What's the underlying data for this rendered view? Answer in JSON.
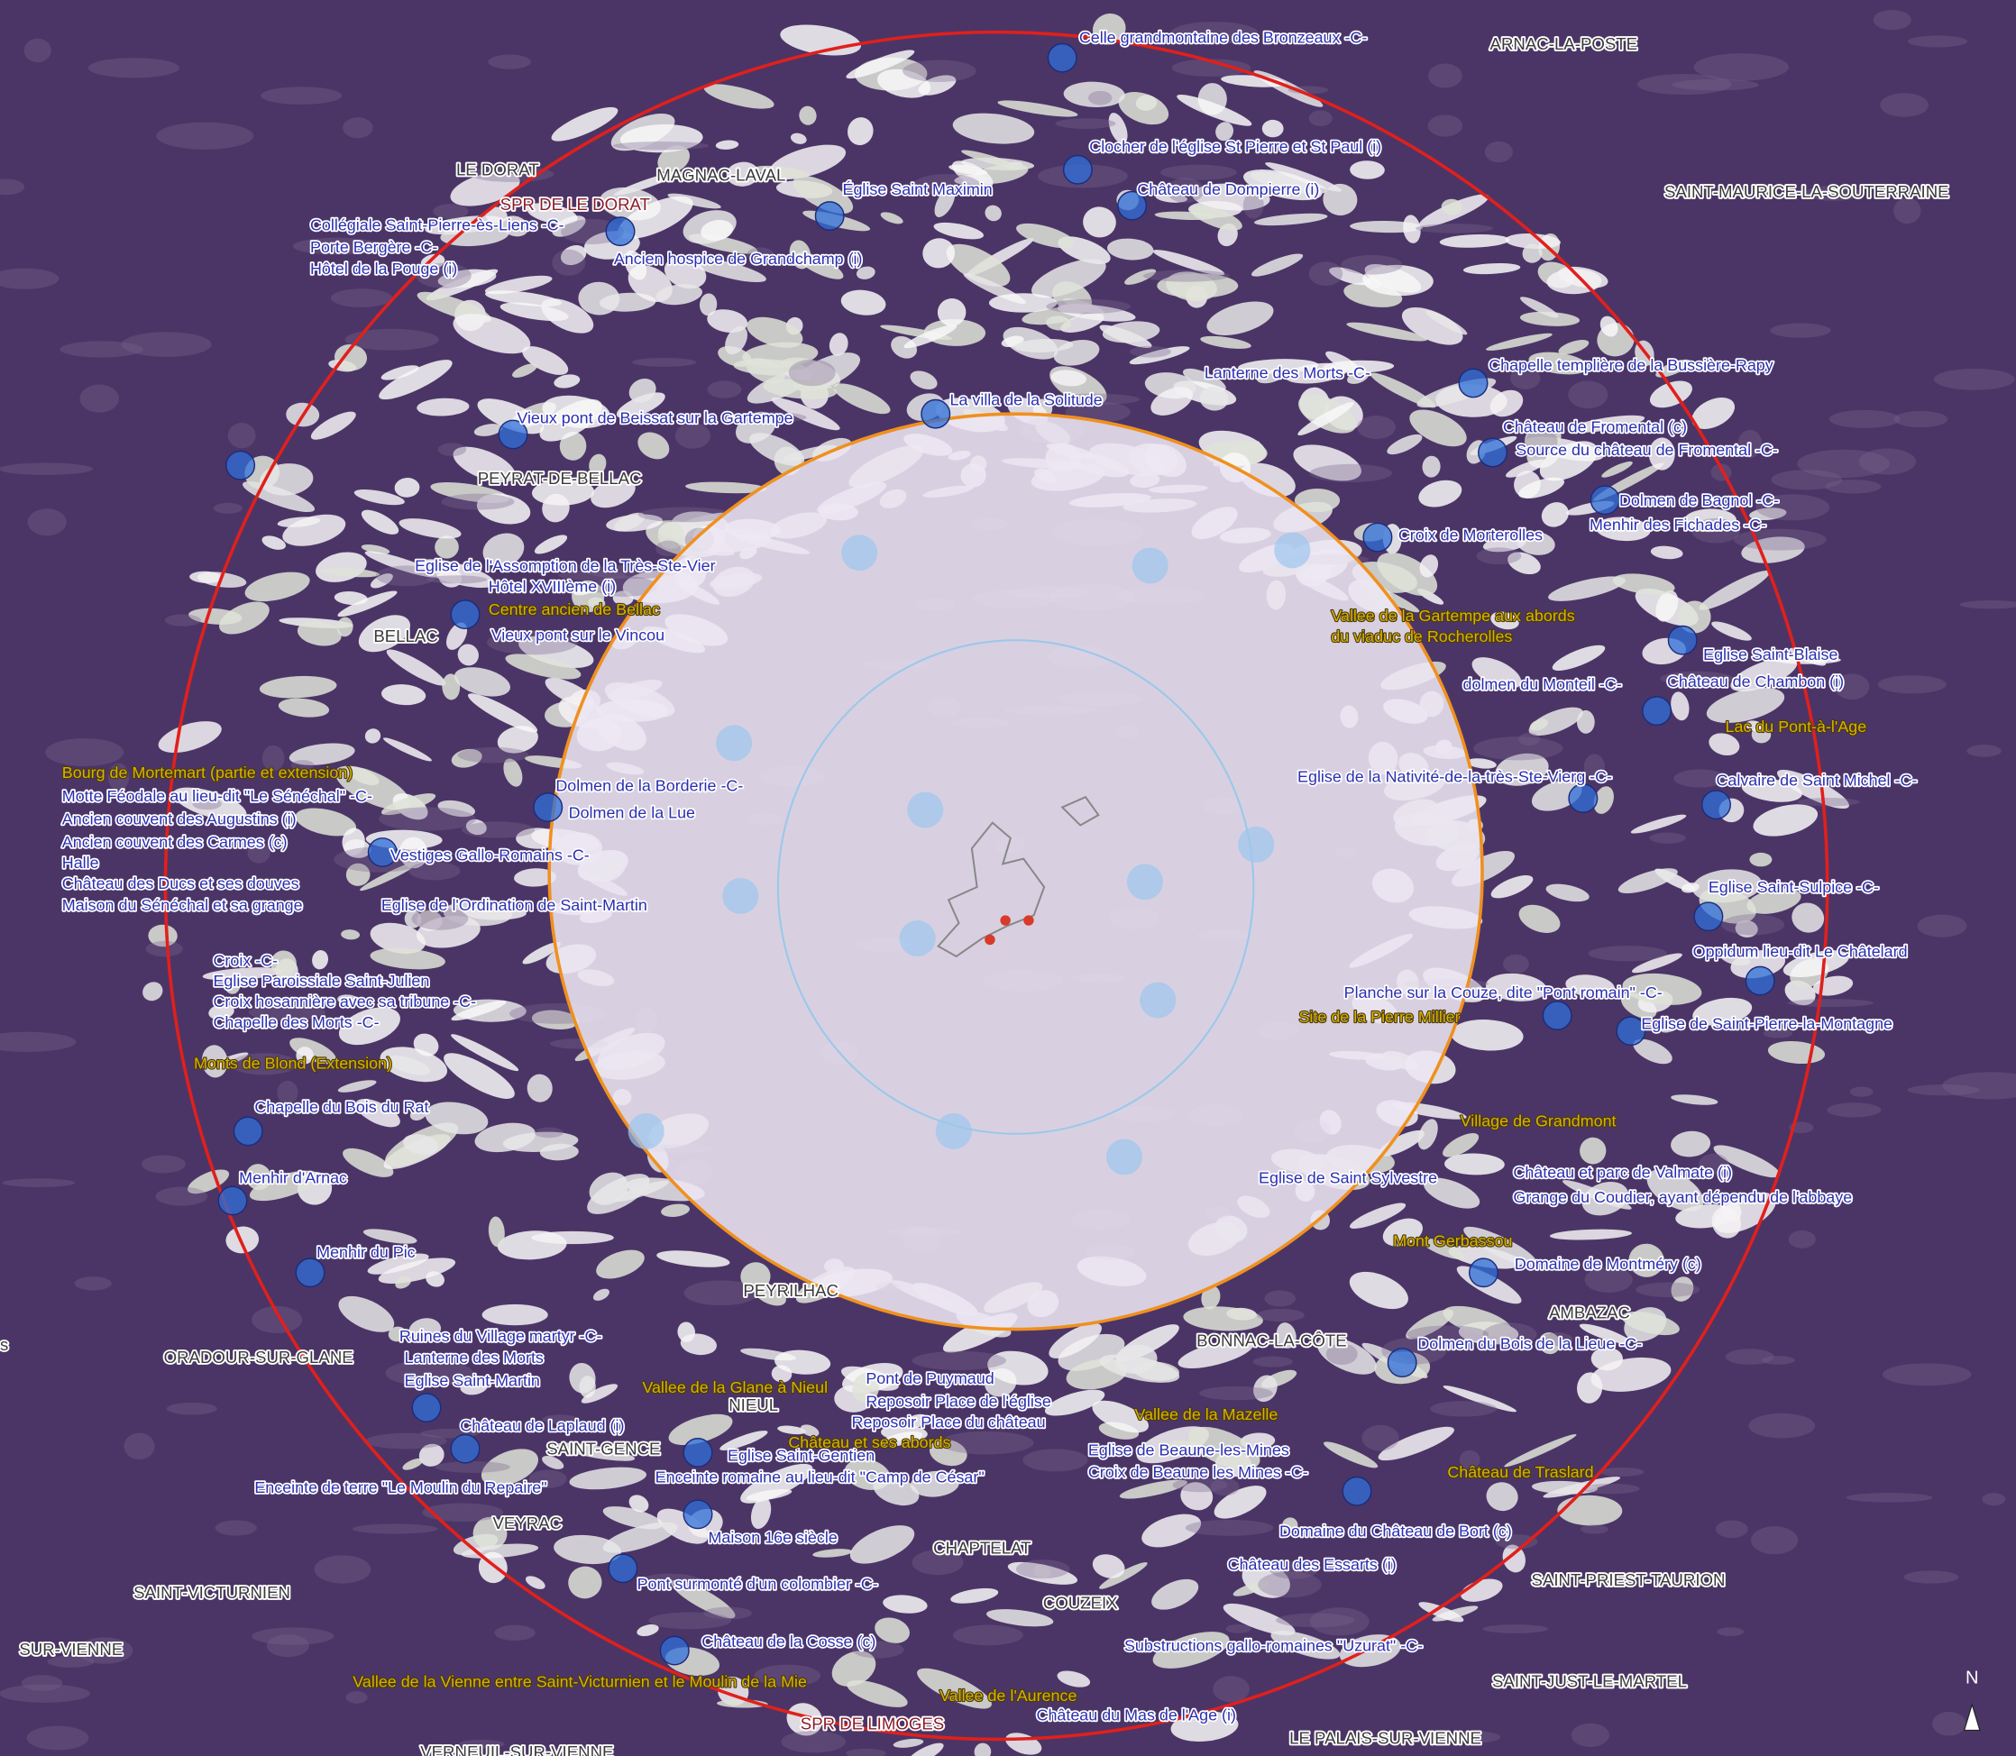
{
  "map": {
    "towns": [
      "ARNAC-LA-POSTE",
      "SAINT-MAURICE-LA-SOUTERRAINE",
      "LE DORAT",
      "MAGNAC-LAVAL",
      "PEYRAT-DE-BELLAC",
      "BELLAC",
      "PEYRILHAC",
      "BONNAC-LA-CÔTE",
      "AMBAZAC",
      "ORADOUR-SUR-GLANE",
      "NIEUL",
      "SAINT-GENCE",
      "VEYRAC",
      "CHAPTELAT",
      "COUZEIX",
      "SAINT-VICTURNIEN",
      "SUR-VIENNE",
      "SAINT-PRIEST-TAURION",
      "SAINT-JUST-LE-MARTEL",
      "LE PALAIS-SUR-VIENNE",
      "VERNEUIL-SUR-VIENNE"
    ],
    "spr": [
      "SPR DE LE DORAT",
      "SPR DE LIMOGES"
    ],
    "monuments": [
      "Celle grandmontaine des Bronzeaux -C-",
      "Clocher de l'église St Pierre et St Paul (i)",
      "Église Saint Maximin",
      "Château de Dompierre (i)",
      "Collégiale Saint-Pierre-ès-Liens -C-",
      "Porte Bergère -C-",
      "Hôtel de la Pouge (i)",
      "Ancien hospice de Grandchamp (i)",
      "Lanterne des Morts -C-",
      "Chapelle templière de la Bussière-Rapy",
      "Vieux pont de Beissat sur la Gartempe",
      "La villa de la Solitude",
      "Château de Fromental (c)",
      "Source du château de Fromental -C-",
      "Dolmen de Bagnol -C-",
      "Menhir des Fichades -C-",
      "Croix de Morterolles",
      "Eglise de l'Assomption de la Très-Ste-Vier",
      "Hôtel XVIIIème (i)",
      "Vieux pont sur le Vincou",
      "Eglise Saint-Blaise",
      "dolmen du Monteil -C-",
      "Château de Chambon (i)",
      "Eglise de la Nativité-de-la-très-Ste-Vierg -C-",
      "Calvaire de Saint Michel -C-",
      "Dolmen de la Borderie -C-",
      "Dolmen de la Lue",
      "Motte Féodale au lieu-dit \"Le Sénéchal\" -C-",
      "Ancien couvent des Augustins (i)",
      "Ancien couvent des Carmes (c)",
      "Halle",
      "Château des Ducs et ses douves",
      "Maison du Sénéchal et sa grange",
      "Vestiges Gallo-Romains -C-",
      "Eglise de l'Ordination de Saint-Martin",
      "Eglise Saint-Sulpice -C-",
      "Oppidum lieu-dit Le Châtelard",
      "Croix -C-",
      "Eglise Paroissiale Saint-Julien",
      "Croix hosannière avec sa tribune -C-",
      "Chapelle des Morts -C-",
      "Planche sur la Couze, dite \"Pont romain\" -C-",
      "Eglise de Saint-Pierre-la-Montagne",
      "Chapelle du Bois du Rat",
      "Menhir d'Arnac",
      "Eglise de Saint Sylvestre",
      "Château et parc de Valmate (i)",
      "Grange du Coudier, ayant dépendu de l'abbaye",
      "Menhir du Pic",
      "Domaine de Montméry (c)",
      "Dolmen du Bois de la Lieue -C-",
      "Ruines du Village martyr -C-",
      "Lanterne des Morts",
      "Eglise Saint-Martin",
      "Pont de Puymaud",
      "Reposoir Place de l'église",
      "Reposoir Place du château",
      "Château de Laplaud (i)",
      "Eglise de Beaune-les-Mines",
      "Croix de Beaune les Mines -C-",
      "Eglise Saint-Gentien",
      "Enceinte de terre \"Le Moulin du Repaire\"",
      "Enceinte romaine au lieu-dit \"Camp de César\"",
      "Maison 16e siècle",
      "Domaine du Château de Bort (c)",
      "Château des Essarts (i)",
      "Pont surmonté d'un colombier -C-",
      "Château de la Cosse (c)",
      "Substructions gallo-romaines \"Uzurat\" -C-",
      "Château du Mas de l'Age (i)"
    ],
    "sites": [
      "Centre ancien de Bellac",
      "Vallee de la Gartempe aux abords",
      "du viaduc de Rocherolles",
      "Lac du Pont-à-l'Age",
      "Bourg de Mortemart (partie et extension)",
      "Monts de Blond (Extension)",
      "Site de la Pierre Millier",
      "Village de Grandmont",
      "Mont Gerbassou",
      "Vallee de la Glane à Nieul",
      "Château et ses abords",
      "Vallee de la Mazelle",
      "Château de Traslard",
      "Vallee de la Vienne entre Saint-Victurnien et le Moulin de la Mie",
      "Vallee de l'Aurence"
    ],
    "north": "N",
    "edge_fragment": "s"
  }
}
